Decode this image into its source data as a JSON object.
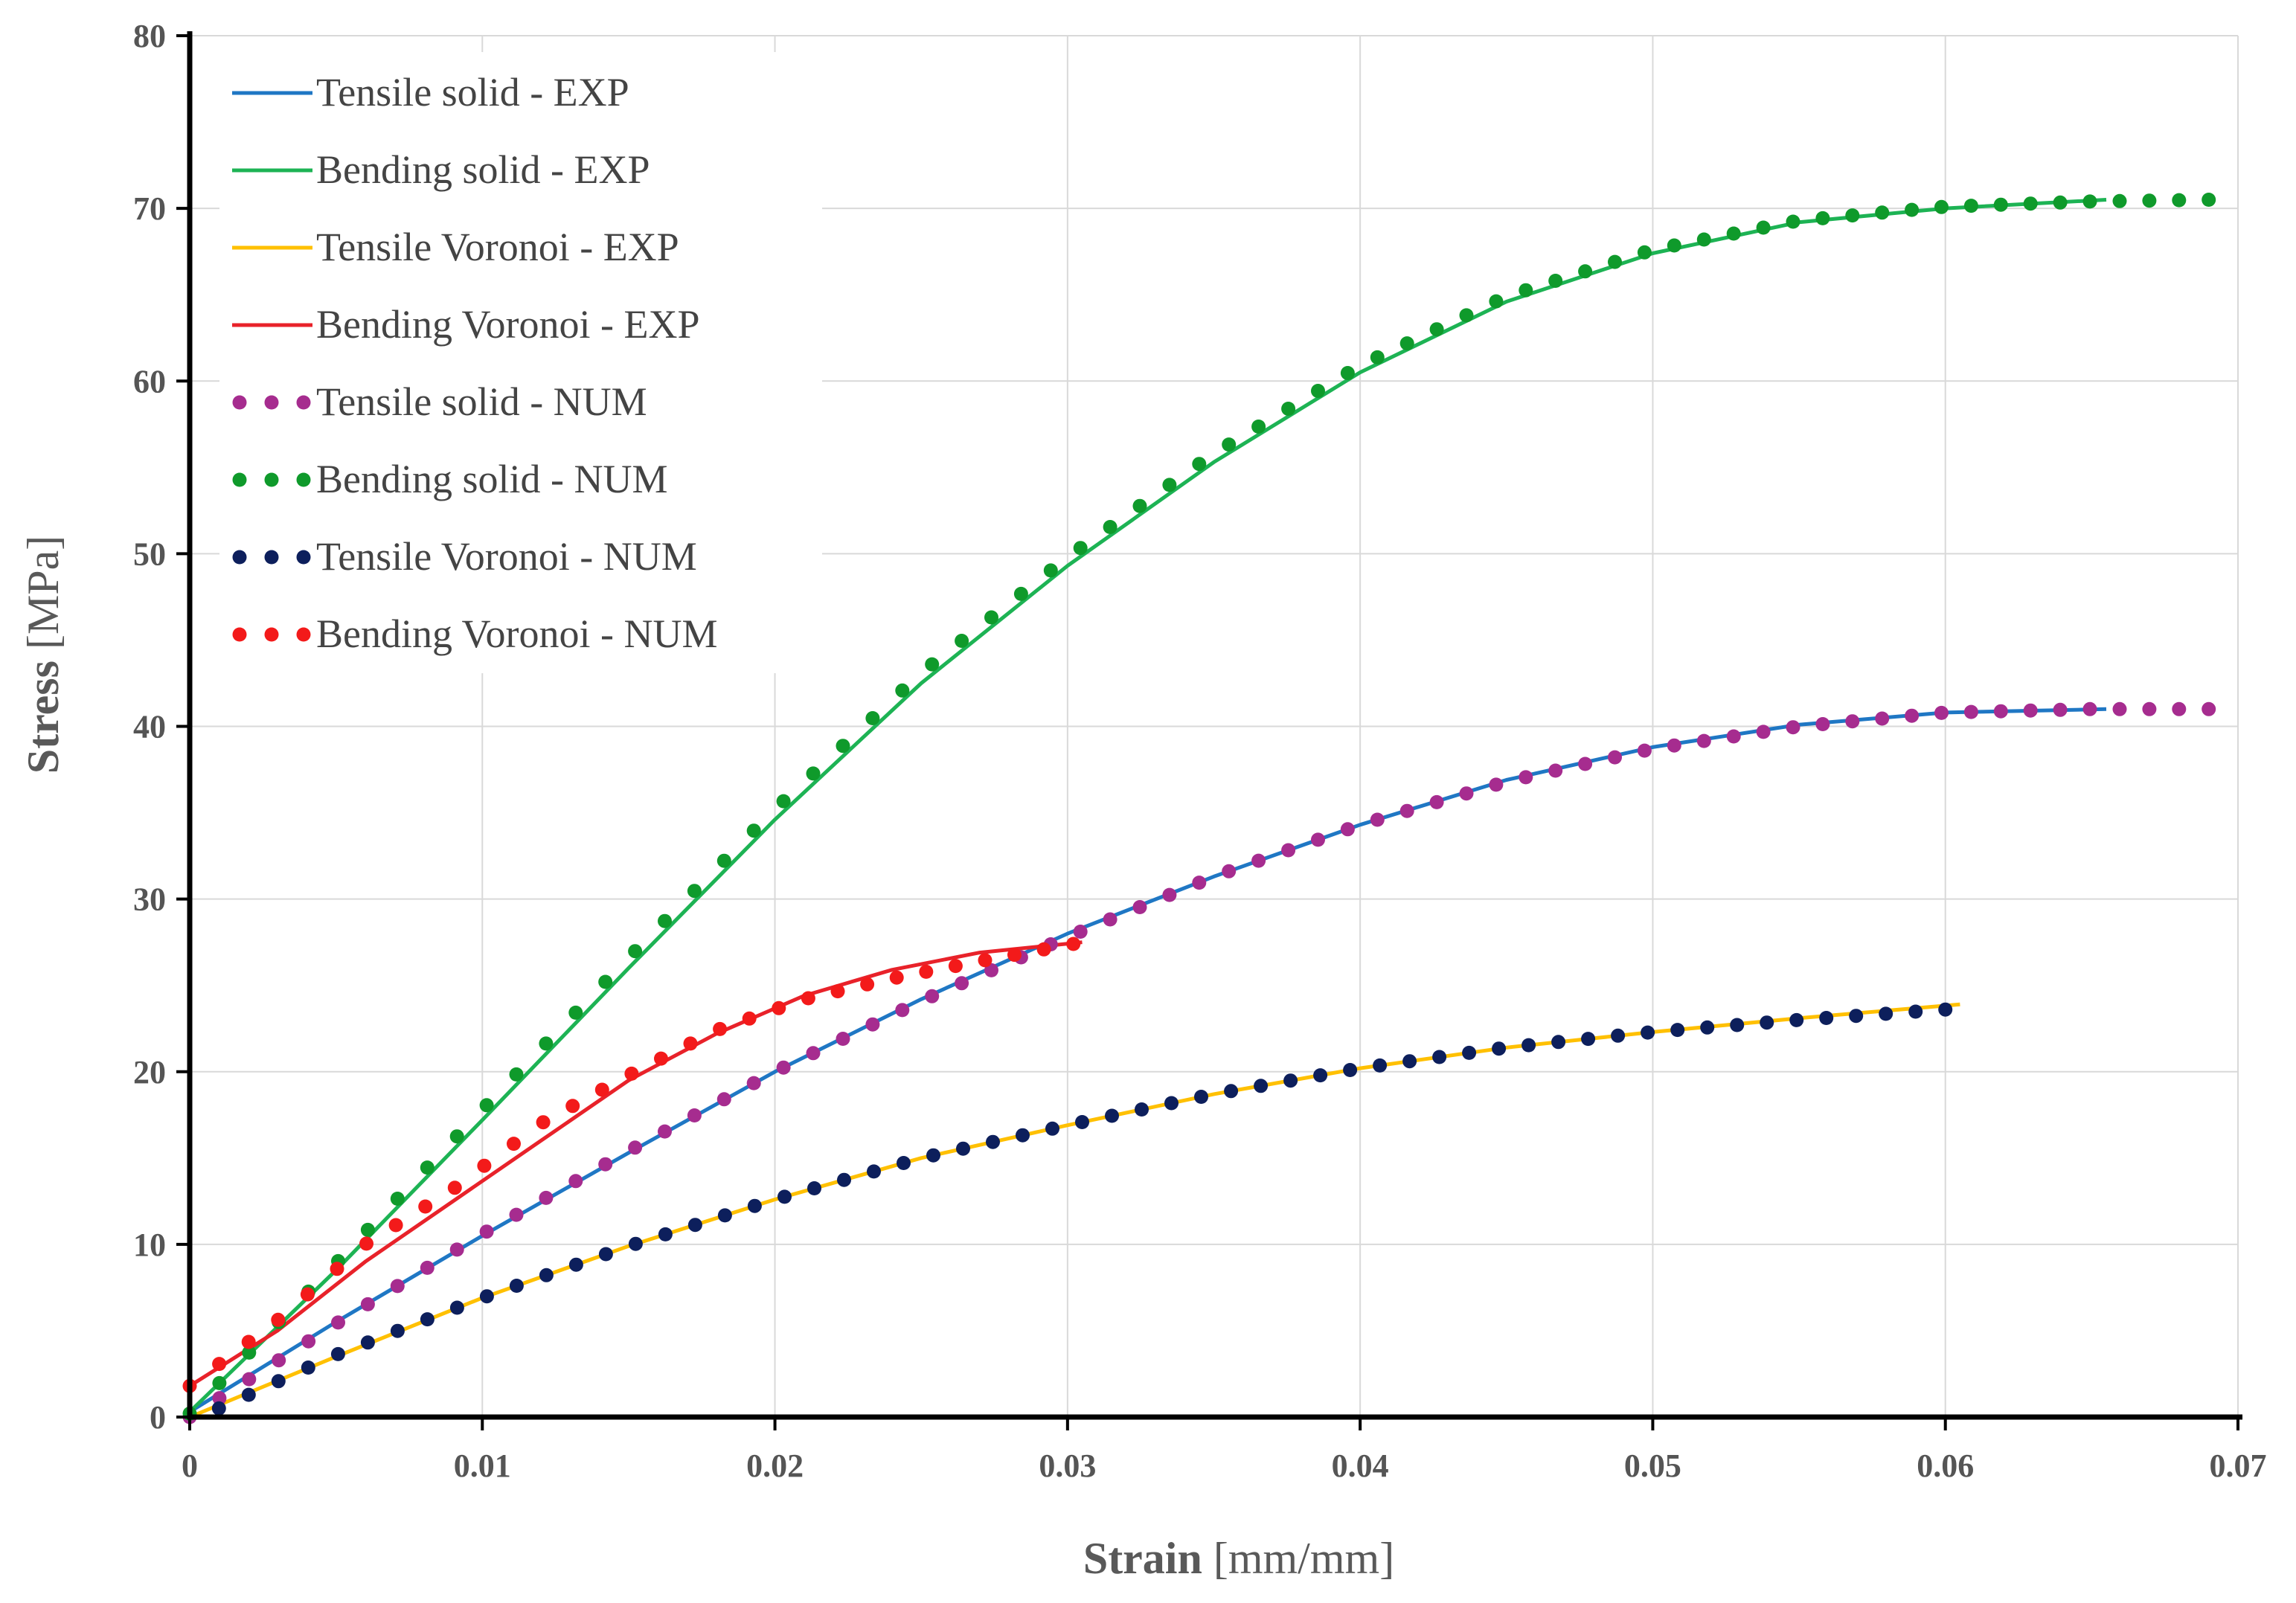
{
  "chart_data": {
    "type": "line",
    "title": "",
    "xlabel": {
      "bold": "Strain",
      "unit": " [mm/mm]"
    },
    "ylabel": {
      "bold": "Stress",
      "unit": " [MPa]"
    },
    "xlim": [
      0,
      0.07
    ],
    "ylim": [
      0,
      80
    ],
    "xticks": [
      0,
      0.01,
      0.02,
      0.03,
      0.04,
      0.05,
      0.06,
      0.07
    ],
    "xtick_labels": [
      "0",
      "0.01",
      "0.02",
      "0.03",
      "0.04",
      "0.05",
      "0.06",
      "0.07"
    ],
    "yticks": [
      0,
      10,
      20,
      30,
      40,
      50,
      60,
      70,
      80
    ],
    "ytick_labels": [
      "0",
      "10",
      "20",
      "30",
      "40",
      "50",
      "60",
      "70",
      "80"
    ],
    "grid": true,
    "legend_position": "top-left",
    "series": [
      {
        "name": "Tensile solid - EXP",
        "style": "line",
        "color": "#1f77c4",
        "points": [
          [
            0,
            0.3
          ],
          [
            0.005,
            5.5
          ],
          [
            0.01,
            10.5
          ],
          [
            0.015,
            15.3
          ],
          [
            0.02,
            20
          ],
          [
            0.025,
            24.2
          ],
          [
            0.03,
            28
          ],
          [
            0.035,
            31.3
          ],
          [
            0.04,
            34.3
          ],
          [
            0.045,
            36.9
          ],
          [
            0.05,
            38.8
          ],
          [
            0.055,
            40.1
          ],
          [
            0.06,
            40.8
          ],
          [
            0.0655,
            41
          ]
        ]
      },
      {
        "name": "Bending solid - EXP",
        "style": "line",
        "color": "#1db354",
        "points": [
          [
            0,
            0.3
          ],
          [
            0.005,
            8.5
          ],
          [
            0.01,
            17.2
          ],
          [
            0.015,
            26
          ],
          [
            0.02,
            34.6
          ],
          [
            0.025,
            42.5
          ],
          [
            0.03,
            49.3
          ],
          [
            0.035,
            55.3
          ],
          [
            0.04,
            60.5
          ],
          [
            0.045,
            64.6
          ],
          [
            0.05,
            67.4
          ],
          [
            0.055,
            69.2
          ],
          [
            0.06,
            70
          ],
          [
            0.0655,
            70.5
          ]
        ]
      },
      {
        "name": "Tensile Voronoi - EXP",
        "style": "line",
        "color": "#ffc000",
        "points": [
          [
            0,
            0
          ],
          [
            0.005,
            3.5
          ],
          [
            0.01,
            6.9
          ],
          [
            0.015,
            9.9
          ],
          [
            0.02,
            12.6
          ],
          [
            0.025,
            15
          ],
          [
            0.03,
            16.9
          ],
          [
            0.035,
            18.7
          ],
          [
            0.04,
            20.2
          ],
          [
            0.045,
            21.4
          ],
          [
            0.05,
            22.3
          ],
          [
            0.055,
            23.1
          ],
          [
            0.0605,
            23.9
          ]
        ]
      },
      {
        "name": "Bending Voronoi - EXP",
        "style": "line",
        "color": "#e8222a",
        "points": [
          [
            0,
            1.8
          ],
          [
            0.003,
            5
          ],
          [
            0.006,
            9
          ],
          [
            0.009,
            12.5
          ],
          [
            0.012,
            16
          ],
          [
            0.015,
            19.5
          ],
          [
            0.018,
            22.2
          ],
          [
            0.021,
            24.4
          ],
          [
            0.024,
            25.9
          ],
          [
            0.027,
            26.9
          ],
          [
            0.0305,
            27.5
          ]
        ]
      },
      {
        "name": "Tensile solid - NUM",
        "style": "dots",
        "color": "#a62c8f",
        "points": [
          [
            0,
            0
          ],
          [
            0.005,
            5.4
          ],
          [
            0.01,
            10.6
          ],
          [
            0.015,
            15.4
          ],
          [
            0.02,
            20
          ],
          [
            0.025,
            24.1
          ],
          [
            0.03,
            27.8
          ],
          [
            0.035,
            31.3
          ],
          [
            0.04,
            34.3
          ],
          [
            0.045,
            36.8
          ],
          [
            0.05,
            38.7
          ],
          [
            0.055,
            40
          ],
          [
            0.06,
            40.8
          ],
          [
            0.065,
            41
          ],
          [
            0.069,
            41
          ]
        ]
      },
      {
        "name": "Bending solid - NUM",
        "style": "dots",
        "color": "#0f9a2b",
        "points": [
          [
            0,
            0.2
          ],
          [
            0.005,
            8.9
          ],
          [
            0.01,
            17.8
          ],
          [
            0.015,
            26.6
          ],
          [
            0.02,
            35.2
          ],
          [
            0.025,
            43.1
          ],
          [
            0.03,
            49.8
          ],
          [
            0.035,
            55.8
          ],
          [
            0.04,
            60.9
          ],
          [
            0.045,
            64.9
          ],
          [
            0.05,
            67.6
          ],
          [
            0.055,
            69.3
          ],
          [
            0.06,
            70.1
          ],
          [
            0.065,
            70.4
          ],
          [
            0.069,
            70.5
          ]
        ]
      },
      {
        "name": "Tensile Voronoi - NUM",
        "style": "dots",
        "color": "#0d1f5c",
        "points": [
          [
            0.001,
            0.5
          ],
          [
            0.005,
            3.6
          ],
          [
            0.01,
            6.9
          ],
          [
            0.015,
            9.9
          ],
          [
            0.02,
            12.6
          ],
          [
            0.025,
            15
          ],
          [
            0.03,
            16.9
          ],
          [
            0.035,
            18.7
          ],
          [
            0.04,
            20.2
          ],
          [
            0.045,
            21.4
          ],
          [
            0.05,
            22.3
          ],
          [
            0.055,
            23
          ],
          [
            0.06,
            23.6
          ]
        ]
      },
      {
        "name": "Bending Voronoi - NUM",
        "style": "dots",
        "color": "#f31a1a",
        "points": [
          [
            0,
            1.8
          ],
          [
            0.003,
            5.6
          ],
          [
            0.006,
            10
          ],
          [
            0.009,
            13.2
          ],
          [
            0.012,
            17
          ],
          [
            0.015,
            19.8
          ],
          [
            0.018,
            22.4
          ],
          [
            0.021,
            24.2
          ],
          [
            0.024,
            25.4
          ],
          [
            0.027,
            26.4
          ],
          [
            0.0302,
            27.4
          ]
        ]
      }
    ]
  }
}
